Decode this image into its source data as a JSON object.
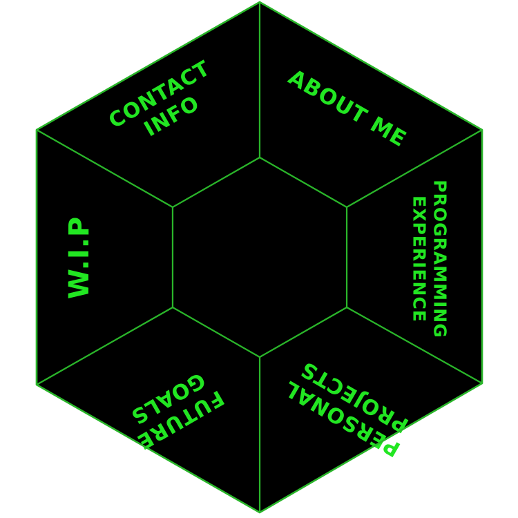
{
  "colors": {
    "background": "#ffffff",
    "panel_fill": "#000000",
    "panel_stroke": "#2ab52a",
    "label_text": "#22e622"
  },
  "menu": {
    "contact": {
      "line1": "CONTACT",
      "line2": "INFO"
    },
    "about": {
      "line1": "ABOUT ME"
    },
    "programming": {
      "line1": "PROGRAMMING",
      "line2": "EXPERIENCE"
    },
    "projects": {
      "line1": "PERSONAL",
      "line2": "PROJECTS"
    },
    "goals": {
      "line1": "FUTURE",
      "line2": "GOALS"
    },
    "wip": {
      "line1": "W.I.P"
    }
  }
}
